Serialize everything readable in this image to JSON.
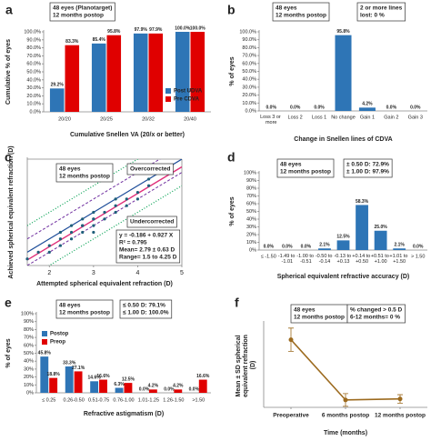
{
  "chart_data": [
    {
      "panel": "a",
      "type": "bar",
      "notes": [
        [
          "48 eyes (Planotarget)",
          "12 months postop"
        ]
      ],
      "categories": [
        "20/20",
        "20/25",
        "20/32",
        "20/40"
      ],
      "series": [
        {
          "name": "Post UDVA",
          "color": "#2e75b6",
          "values": [
            29.2,
            85.4,
            97.9,
            100.0
          ],
          "value_labels": [
            "29.2%",
            "85.4%",
            "97.9%",
            "100.0%"
          ]
        },
        {
          "name": "Pre CDVA",
          "color": "#e00000",
          "values": [
            83.3,
            95.8,
            97.9,
            100.0
          ],
          "value_labels": [
            "83.3%",
            "95.8%",
            "97.9%",
            "100.0%"
          ]
        }
      ],
      "ylim": [
        0,
        100
      ],
      "yticks": [
        {
          "value": 0,
          "label": "0.0%"
        },
        {
          "value": 10,
          "label": "10.0%"
        },
        {
          "value": 20,
          "label": "20.0%"
        },
        {
          "value": 30,
          "label": "30.0%"
        },
        {
          "value": 40,
          "label": "40.0%"
        },
        {
          "value": 50,
          "label": "50.0%"
        },
        {
          "value": 60,
          "label": "60.0%"
        },
        {
          "value": 70,
          "label": "70.0%"
        },
        {
          "value": 80,
          "label": "80.0%"
        },
        {
          "value": 90,
          "label": "90.0%"
        },
        {
          "value": 100,
          "label": "100.0%"
        }
      ],
      "xlabel": "Cumulative Snellen VA (20/x or better)",
      "ylabel": "Cumulative % of eyes",
      "legend": "lower right"
    },
    {
      "panel": "b",
      "type": "bar",
      "notes": [
        [
          "48 eyes",
          "12 months postop"
        ],
        [
          "2 or more lines",
          "lost: 0 %"
        ]
      ],
      "categories": [
        "Loss 3 or more",
        "Loss 2",
        "Loss 1",
        "No change",
        "Gain 1",
        "Gain 2",
        "Gain 3"
      ],
      "values": [
        0.0,
        0.0,
        0.0,
        95.8,
        4.2,
        0.0,
        0.0
      ],
      "value_labels": [
        "0.0%",
        "0.0%",
        "0.0%",
        "95.8%",
        "4.2%",
        "0.0%",
        "0.0%"
      ],
      "color": "#2e75b6",
      "ylim": [
        0,
        100
      ],
      "yticks": [
        {
          "value": 0,
          "label": "0.0%"
        },
        {
          "value": 10,
          "label": "10.0%"
        },
        {
          "value": 20,
          "label": "20.0%"
        },
        {
          "value": 30,
          "label": "30.0%"
        },
        {
          "value": 40,
          "label": "40.0%"
        },
        {
          "value": 50,
          "label": "50.0%"
        },
        {
          "value": 60,
          "label": "60.0%"
        },
        {
          "value": 70,
          "label": "70.0%"
        },
        {
          "value": 80,
          "label": "80.0%"
        },
        {
          "value": 90,
          "label": "90.0%"
        },
        {
          "value": 100,
          "label": "100.0%"
        }
      ],
      "xlabel": "Change in Snellen lines of CDVA",
      "ylabel": "% of eyes"
    },
    {
      "panel": "c",
      "type": "scatter",
      "notes": [
        [
          "48 eyes",
          "12 months postop"
        ],
        [
          "Overcorrected"
        ],
        [
          "Undercorrected"
        ],
        [
          "y = -0.186 + 0.927 X",
          "R² = 0.795",
          "Mean= 2.79 ± 0.63 D",
          "Range= 1.5 to 4.25 D"
        ]
      ],
      "x": [
        1.5,
        1.75,
        2,
        2,
        2.25,
        2.25,
        2.5,
        2.5,
        2.5,
        2.75,
        2.75,
        2.75,
        3,
        3,
        3,
        3,
        3.25,
        3.25,
        3.5,
        3.5,
        3.5,
        3.75,
        3.75,
        4,
        4,
        4.25,
        4.25,
        2.25,
        3,
        2.75
      ],
      "y": [
        1.25,
        1.5,
        1.75,
        1.5,
        2.0,
        1.75,
        2.25,
        2.0,
        2.5,
        2.5,
        2.25,
        2.75,
        2.75,
        2.5,
        3.0,
        2.25,
        3.0,
        2.75,
        3.25,
        3.0,
        3.5,
        3.5,
        3.25,
        3.75,
        3.5,
        4.0,
        4.25,
        2.25,
        2.75,
        2.5
      ],
      "color": "#1f5f7a",
      "reference_offsets": [
        -1,
        -0.5,
        0,
        0.5,
        1
      ],
      "xlim": [
        1.5,
        5
      ],
      "xticks": [
        2,
        3,
        4,
        5
      ],
      "ylim": [
        1,
        5
      ],
      "xlabel": "Attempted spherical equivalent refraction (D)",
      "ylabel": "Achieved spherical equivalent refraction (D)"
    },
    {
      "panel": "d",
      "type": "bar",
      "notes": [
        [
          "48 eyes",
          "12 months postop"
        ],
        [
          "± 0.50 D: 72.9%",
          "± 1.00 D: 97.9%"
        ]
      ],
      "categories": [
        "≤ -1.50",
        "-1.49 to -1.01",
        "-1.00 to -0.51",
        "-0.50 to -0.14",
        "-0.13 to +0.13",
        "+0.14 to +0.50",
        "+0.51 to +1.00",
        "+1.01 to +1.50",
        "> 1.50"
      ],
      "values": [
        0.0,
        0.0,
        0.0,
        2.1,
        12.5,
        58.3,
        25.0,
        2.1,
        0.0
      ],
      "value_labels": [
        "0.0%",
        "0.0%",
        "0.0%",
        "2.1%",
        "12.5%",
        "58.3%",
        "25.0%",
        "2.1%",
        "0.0%"
      ],
      "color": "#2e75b6",
      "ylim": [
        0,
        100
      ],
      "yticks": [
        {
          "value": 0,
          "label": "0%"
        },
        {
          "value": 10,
          "label": "10%"
        },
        {
          "value": 20,
          "label": "20%"
        },
        {
          "value": 30,
          "label": "30%"
        },
        {
          "value": 40,
          "label": "40%"
        },
        {
          "value": 50,
          "label": "50%"
        },
        {
          "value": 60,
          "label": "60%"
        },
        {
          "value": 70,
          "label": "70%"
        },
        {
          "value": 80,
          "label": "80%"
        },
        {
          "value": 90,
          "label": "90%"
        },
        {
          "value": 100,
          "label": "100%"
        }
      ],
      "xlabel": "Spherical equivalent refractive accuracy (D)",
      "ylabel": "% of eyes"
    },
    {
      "panel": "e",
      "type": "bar",
      "notes": [
        [
          "48 eyes",
          "12 months postop"
        ],
        [
          "≤ 0.50 D: 79.1%",
          "≤ 1.00 D: 100.0%"
        ]
      ],
      "categories": [
        "≤ 0.25",
        "0.26-0.50",
        "0.51-0.75",
        "0.76-1.00",
        "1.01-1.25",
        "1.26-1.50",
        ">1.50"
      ],
      "series": [
        {
          "name": "Postop",
          "color": "#2e75b6",
          "values": [
            45.8,
            33.3,
            14.6,
            6.3,
            0.0,
            0.0,
            0.0
          ],
          "value_labels": [
            "45.8%",
            "33.3%",
            "14.6%",
            "6.3%",
            "0.0%",
            "0.0%",
            "0.0%"
          ]
        },
        {
          "name": "Preop",
          "color": "#e00000",
          "values": [
            18.8,
            27.1,
            16.6,
            12.5,
            4.2,
            4.2,
            16.6
          ],
          "value_labels": [
            "18.8%",
            "27.1%",
            "16.6%",
            "12.5%",
            "4.2%",
            "4.2%",
            "16.6%"
          ]
        }
      ],
      "ylim": [
        0,
        100
      ],
      "yticks": [
        {
          "value": 0,
          "label": "0%"
        },
        {
          "value": 10,
          "label": "10%"
        },
        {
          "value": 20,
          "label": "20%"
        },
        {
          "value": 30,
          "label": "30%"
        },
        {
          "value": 40,
          "label": "40%"
        },
        {
          "value": 50,
          "label": "50%"
        },
        {
          "value": 60,
          "label": "60%"
        },
        {
          "value": 70,
          "label": "70%"
        },
        {
          "value": 80,
          "label": "80%"
        },
        {
          "value": 90,
          "label": "90%"
        },
        {
          "value": 100,
          "label": "100%"
        }
      ],
      "xlabel": "Refractive astigmatism (D)",
      "ylabel": "% of eyes",
      "legend": "upper left"
    },
    {
      "panel": "f",
      "type": "line",
      "notes": [
        [
          "48 eyes",
          "12 months postop"
        ],
        [
          "% changed > 0.5 D",
          "6-12 months= 0 %"
        ]
      ],
      "categories": [
        "Preoperative",
        "6 months postop",
        "12 months postop"
      ],
      "values": [
        3.2,
        0.35,
        0.4
      ],
      "errors": [
        0.55,
        0.3,
        0.2
      ],
      "color": "#9c6a1e",
      "ylim": [
        0,
        4
      ],
      "xlabel": "Time (months)",
      "ylabel": "Mean ± SD spherical equivalent refraction (D)"
    }
  ]
}
